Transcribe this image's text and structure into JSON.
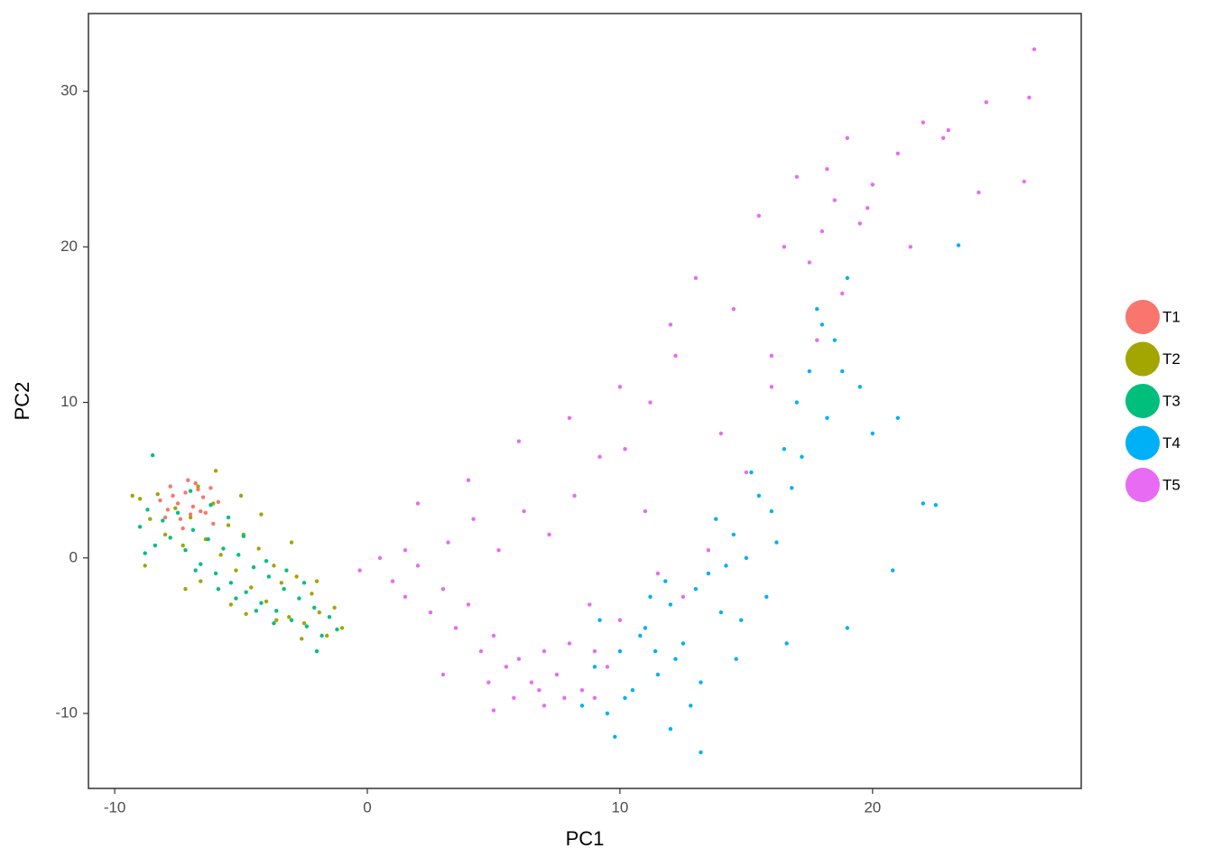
{
  "chart_data": {
    "type": "scatter",
    "x_label": "PC1",
    "y_label": "PC2",
    "xlim": [
      -11.04,
      28.26
    ],
    "ylim": [
      -14.82,
      35
    ],
    "xticks": [
      -10,
      0,
      10,
      20
    ],
    "yticks": [
      -10,
      0,
      10,
      20,
      30
    ],
    "grid": false,
    "legend": "right",
    "series": [
      {
        "name": "T1",
        "color": "#F8766D",
        "x": [
          -7.5,
          -7.2,
          -6.8,
          -7.9,
          -6.5,
          -7.0,
          -8.2,
          -6.2,
          -7.4,
          -6.9,
          -7.7,
          -6.4,
          -7.1,
          -8.0,
          -6.7,
          -5.9,
          -7.3,
          -6.6,
          -7.8,
          -6.1
        ],
        "y": [
          3.5,
          4.2,
          4.8,
          3.1,
          3.9,
          2.8,
          3.7,
          4.5,
          2.5,
          3.3,
          4.0,
          2.9,
          5.0,
          2.6,
          4.4,
          3.6,
          1.9,
          3.0,
          4.6,
          2.2
        ]
      },
      {
        "name": "T2",
        "color": "#A3A500",
        "x": [
          -9.0,
          -8.6,
          -8.3,
          -8.0,
          -7.6,
          -7.3,
          -7.0,
          -6.7,
          -6.4,
          -6.1,
          -5.8,
          -5.5,
          -5.2,
          -4.9,
          -4.6,
          -4.3,
          -4.0,
          -3.7,
          -3.4,
          -3.1,
          -2.8,
          -2.5,
          -2.2,
          -1.9,
          -1.6,
          -1.3,
          -8.8,
          -6.0,
          -5.0,
          -4.2,
          -3.0,
          -2.0,
          -7.2,
          -6.6,
          -5.4,
          -4.8,
          -3.6,
          -2.6,
          -1.0,
          -9.3
        ],
        "y": [
          3.8,
          2.5,
          4.1,
          1.5,
          3.2,
          0.8,
          2.6,
          4.6,
          1.2,
          3.5,
          0.2,
          2.1,
          -0.8,
          1.5,
          -1.9,
          0.6,
          -2.8,
          -0.5,
          -1.6,
          -3.8,
          -1.2,
          -4.2,
          -2.3,
          -3.5,
          -5.0,
          -3.2,
          -0.5,
          5.6,
          4.0,
          2.8,
          1.0,
          -1.5,
          -2.0,
          -1.5,
          -3.0,
          -3.6,
          -4.0,
          -5.2,
          -4.5,
          4.0
        ]
      },
      {
        "name": "T3",
        "color": "#00BF7D",
        "x": [
          -9.0,
          -8.7,
          -8.4,
          -8.1,
          -7.8,
          -7.5,
          -7.2,
          -6.9,
          -6.6,
          -6.3,
          -6.0,
          -5.7,
          -5.4,
          -5.1,
          -4.8,
          -4.5,
          -4.2,
          -3.9,
          -3.6,
          -3.3,
          -3.0,
          -2.7,
          -2.4,
          -2.1,
          -1.8,
          -1.5,
          -1.2,
          -8.5,
          -7.0,
          -6.2,
          -5.5,
          -4.9,
          -4.0,
          -3.2,
          -2.5,
          -6.8,
          -5.9,
          -5.2,
          -4.4,
          -3.7,
          -8.8,
          -2.0
        ],
        "y": [
          2.0,
          3.1,
          0.8,
          2.4,
          1.3,
          2.9,
          0.5,
          1.8,
          -0.4,
          1.2,
          -1.0,
          0.6,
          -1.6,
          0.2,
          -2.2,
          -0.6,
          -2.9,
          -1.2,
          -3.4,
          -2.0,
          -4.0,
          -2.6,
          -4.4,
          -3.2,
          -5.0,
          -3.8,
          -4.6,
          6.6,
          4.3,
          3.4,
          2.6,
          1.4,
          -0.2,
          -0.8,
          -1.6,
          -0.8,
          -2.0,
          -2.6,
          -3.4,
          -4.2,
          0.3,
          -6.0
        ]
      },
      {
        "name": "T4",
        "color": "#00B0F6",
        "x": [
          8.5,
          9.0,
          9.5,
          10.0,
          10.5,
          11.0,
          11.5,
          12.0,
          12.5,
          13.0,
          13.5,
          14.0,
          14.5,
          15.0,
          15.5,
          16.0,
          16.5,
          17.0,
          17.5,
          18.0,
          18.5,
          19.0,
          19.5,
          20.0,
          9.2,
          10.2,
          11.2,
          12.2,
          13.2,
          14.2,
          15.2,
          16.2,
          17.2,
          18.2,
          10.8,
          11.8,
          12.8,
          13.8,
          14.8,
          15.8,
          16.8,
          17.8,
          21.0,
          22.0,
          22.5,
          23.4,
          20.8,
          19.0,
          13.2,
          12.0,
          9.8,
          11.4,
          14.6,
          16.6,
          18.8
        ],
        "y": [
          -9.5,
          -7.0,
          -10.0,
          -6.0,
          -8.5,
          -4.5,
          -7.5,
          -3.0,
          -5.5,
          -2.0,
          -1.0,
          -3.5,
          1.5,
          0.0,
          4.0,
          3.0,
          7.0,
          10.0,
          12.0,
          15.0,
          14.0,
          18.0,
          11.0,
          8.0,
          -4.0,
          -9.0,
          -2.5,
          -6.5,
          -8.0,
          -0.5,
          5.5,
          1.0,
          6.5,
          9.0,
          -5.0,
          -1.5,
          -9.5,
          2.5,
          -4.0,
          -2.5,
          4.5,
          16.0,
          9.0,
          3.5,
          3.4,
          20.1,
          -0.8,
          -4.5,
          -12.5,
          -11.0,
          -11.5,
          -6.0,
          -6.5,
          -5.5,
          12.0
        ]
      },
      {
        "name": "T5",
        "color": "#E76BF3",
        "x": [
          0.5,
          1.0,
          1.5,
          2.0,
          2.5,
          3.0,
          3.5,
          4.0,
          4.5,
          5.0,
          5.5,
          6.0,
          6.5,
          7.0,
          7.5,
          8.0,
          8.5,
          9.0,
          9.5,
          10.0,
          3.2,
          4.2,
          5.2,
          6.2,
          7.2,
          8.2,
          9.2,
          10.2,
          11.2,
          12.2,
          2.0,
          4.0,
          6.0,
          8.0,
          10.0,
          12.0,
          14.0,
          16.0,
          18.0,
          20.0,
          13.0,
          14.5,
          15.5,
          16.5,
          17.0,
          17.5,
          18.5,
          19.0,
          19.5,
          21.0,
          22.0,
          23.0,
          24.5,
          26.0,
          26.2,
          26.4,
          24.2,
          22.8,
          21.5,
          18.8,
          16.0,
          15.0,
          11.0,
          9.0,
          7.0,
          5.0,
          3.0,
          1.5,
          -0.3,
          4.8,
          5.8,
          6.8,
          7.8,
          8.8,
          11.5,
          12.5,
          13.5,
          17.8,
          18.2,
          19.8
        ],
        "y": [
          0.0,
          -1.5,
          -2.5,
          -0.5,
          -3.5,
          -2.0,
          -4.5,
          -3.0,
          -6.0,
          -5.0,
          -7.0,
          -6.5,
          -8.0,
          -6.0,
          -7.5,
          -5.5,
          -8.5,
          -6.0,
          -7.0,
          -4.0,
          1.0,
          2.5,
          0.5,
          3.0,
          1.5,
          4.0,
          6.5,
          7.0,
          10.0,
          13.0,
          3.5,
          5.0,
          7.5,
          9.0,
          11.0,
          15.0,
          8.0,
          13.0,
          21.0,
          24.0,
          18.0,
          16.0,
          22.0,
          20.0,
          24.5,
          19.0,
          23.0,
          27.0,
          21.5,
          26.0,
          28.0,
          27.5,
          29.3,
          24.2,
          29.6,
          32.7,
          23.5,
          27.0,
          20.0,
          17.0,
          11.0,
          5.5,
          3.0,
          -9.0,
          -9.5,
          -9.8,
          -7.5,
          0.5,
          -0.8,
          -8.0,
          -9.0,
          -8.5,
          -9.0,
          -3.0,
          -1.0,
          -2.5,
          0.5,
          14.0,
          25.0,
          22.5
        ]
      }
    ]
  }
}
